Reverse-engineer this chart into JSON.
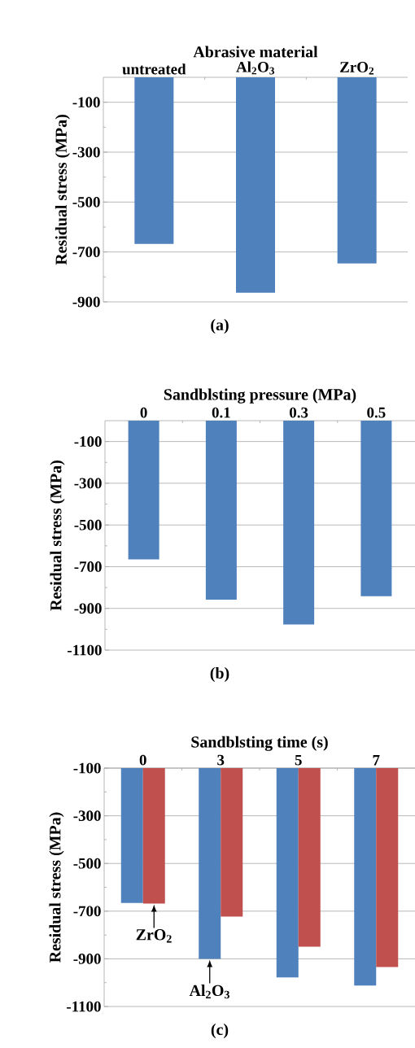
{
  "chart_data": [
    {
      "type": "bar",
      "xlabel": "Abrasive material",
      "ylabel": "Residual stress (MPa)",
      "categories": [
        "untreated",
        "Al$_{2}$O$_{3}$",
        "ZrO$_{2}$"
      ],
      "values": [
        -668,
        -863,
        -746
      ],
      "color": "#4f81bd",
      "ylim": [
        -900,
        0
      ],
      "yticks": [
        -100,
        -300,
        -500,
        -700,
        -900
      ],
      "grid": "y",
      "annotations": [
        "(a)"
      ]
    },
    {
      "type": "bar",
      "xlabel": "Sandblsting pressure (MPa)",
      "ylabel": "Residual stress (MPa)",
      "categories": [
        "0",
        "0.1",
        "0.3",
        "0.5"
      ],
      "values": [
        -665,
        -858,
        -977,
        -842
      ],
      "color": "#4f81bd",
      "ylim": [
        -1100,
        0
      ],
      "yticks": [
        -100,
        -300,
        -500,
        -700,
        -900,
        -1100
      ],
      "grid": "y",
      "annotations": [
        "(b)"
      ]
    },
    {
      "type": "bar",
      "xlabel": "Sandblsting time (s)",
      "ylabel": "Residual stress (MPa)",
      "categories": [
        "0",
        "3",
        "5",
        "7"
      ],
      "series": [
        {
          "color": "#4f81bd",
          "values": [
            -666,
            -900,
            -978,
            -1012
          ]
        },
        {
          "color": "#c0504d",
          "values": [
            -668,
            -723,
            -849,
            -934
          ]
        }
      ],
      "ylim": [
        -1100,
        -100
      ],
      "yticks": [
        -100,
        -300,
        -500,
        -700,
        -900,
        -1100
      ],
      "grid": "y",
      "annotations": [
        "(c)",
        {
          "text": "ZrO$_{2}$",
          "x": "0",
          "y": -668
        },
        {
          "text": "Al$_{2}$O$_{3}$",
          "x": "3",
          "y": -900
        }
      ]
    }
  ]
}
